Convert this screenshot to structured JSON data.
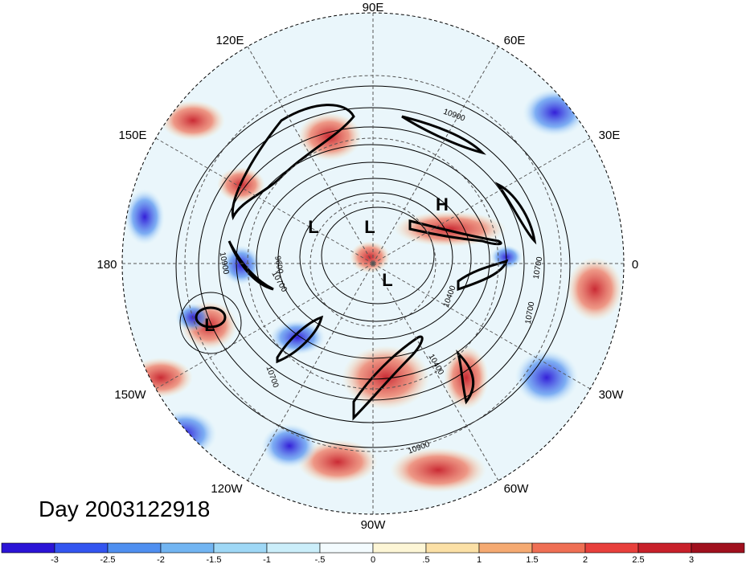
{
  "title": "Day 2003122918",
  "longitude_labels": [
    "90E",
    "60E",
    "30E",
    "0",
    "30W",
    "60W",
    "90W",
    "120W",
    "150W",
    "180",
    "150E",
    "120E"
  ],
  "contour_labels": [
    "10900",
    "10700",
    "10900",
    "9600",
    "10700",
    "10700",
    "10400",
    "10700",
    "10900",
    "10400"
  ],
  "pressure_centers": [
    "H",
    "L",
    "L",
    "L",
    "L"
  ],
  "colorbar": {
    "labels": [
      "-3",
      "-2.5",
      "-2",
      "-1.5",
      "-1",
      "-.5",
      "0",
      ".5",
      "1",
      "1.5",
      "2",
      "2.5",
      "3"
    ],
    "colors": [
      "#2b14d6",
      "#3355f0",
      "#4f8ff0",
      "#72b5f2",
      "#9fd8f6",
      "#cbeefa",
      "#f3fbfe",
      "#fdf6d6",
      "#fbe0a6",
      "#f5aa72",
      "#ef6f54",
      "#e8403c",
      "#c8202a",
      "#a0101e"
    ]
  }
}
